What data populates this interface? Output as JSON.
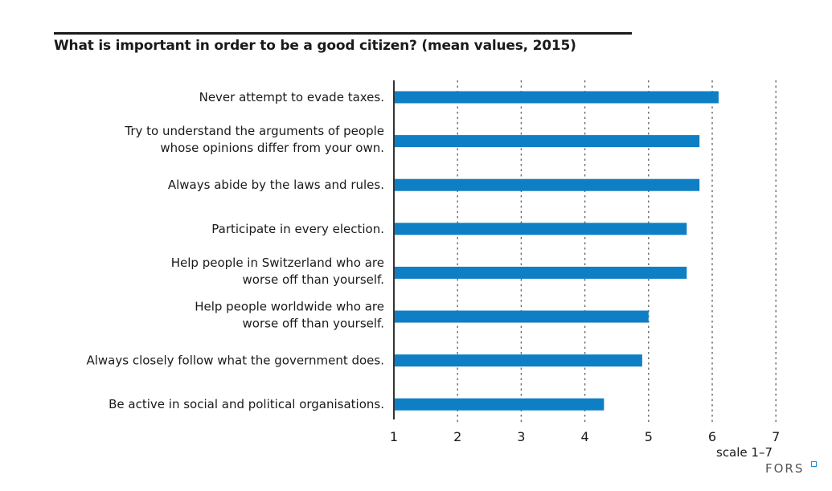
{
  "chart_data": {
    "type": "bar",
    "orientation": "horizontal",
    "title": "What is important in order to be a good citizen? (mean values, 2015)",
    "xlabel": "scale 1–7",
    "ylabel": "",
    "xlim": [
      1,
      7
    ],
    "x_ticks": [
      "1",
      "2",
      "3",
      "4",
      "5",
      "6",
      "7"
    ],
    "grid": "vertical dotted",
    "bar_color": "#0e7fc5",
    "categories": [
      [
        "Never attempt to evade taxes."
      ],
      [
        "Try to understand the arguments of people",
        "whose opinions differ from your own."
      ],
      [
        "Always abide by the laws and rules."
      ],
      [
        "Participate in every election."
      ],
      [
        "Help people in Switzerland who are",
        "worse off than yourself."
      ],
      [
        "Help people worldwide who are",
        "worse off than yourself."
      ],
      [
        "Always closely follow what the government does."
      ],
      [
        "Be active in social and political organisations."
      ]
    ],
    "values": [
      6.1,
      5.8,
      5.8,
      5.6,
      5.6,
      5.0,
      4.9,
      4.3
    ]
  },
  "footer": {
    "scale_note": "scale 1–7",
    "brand": "FORS"
  }
}
